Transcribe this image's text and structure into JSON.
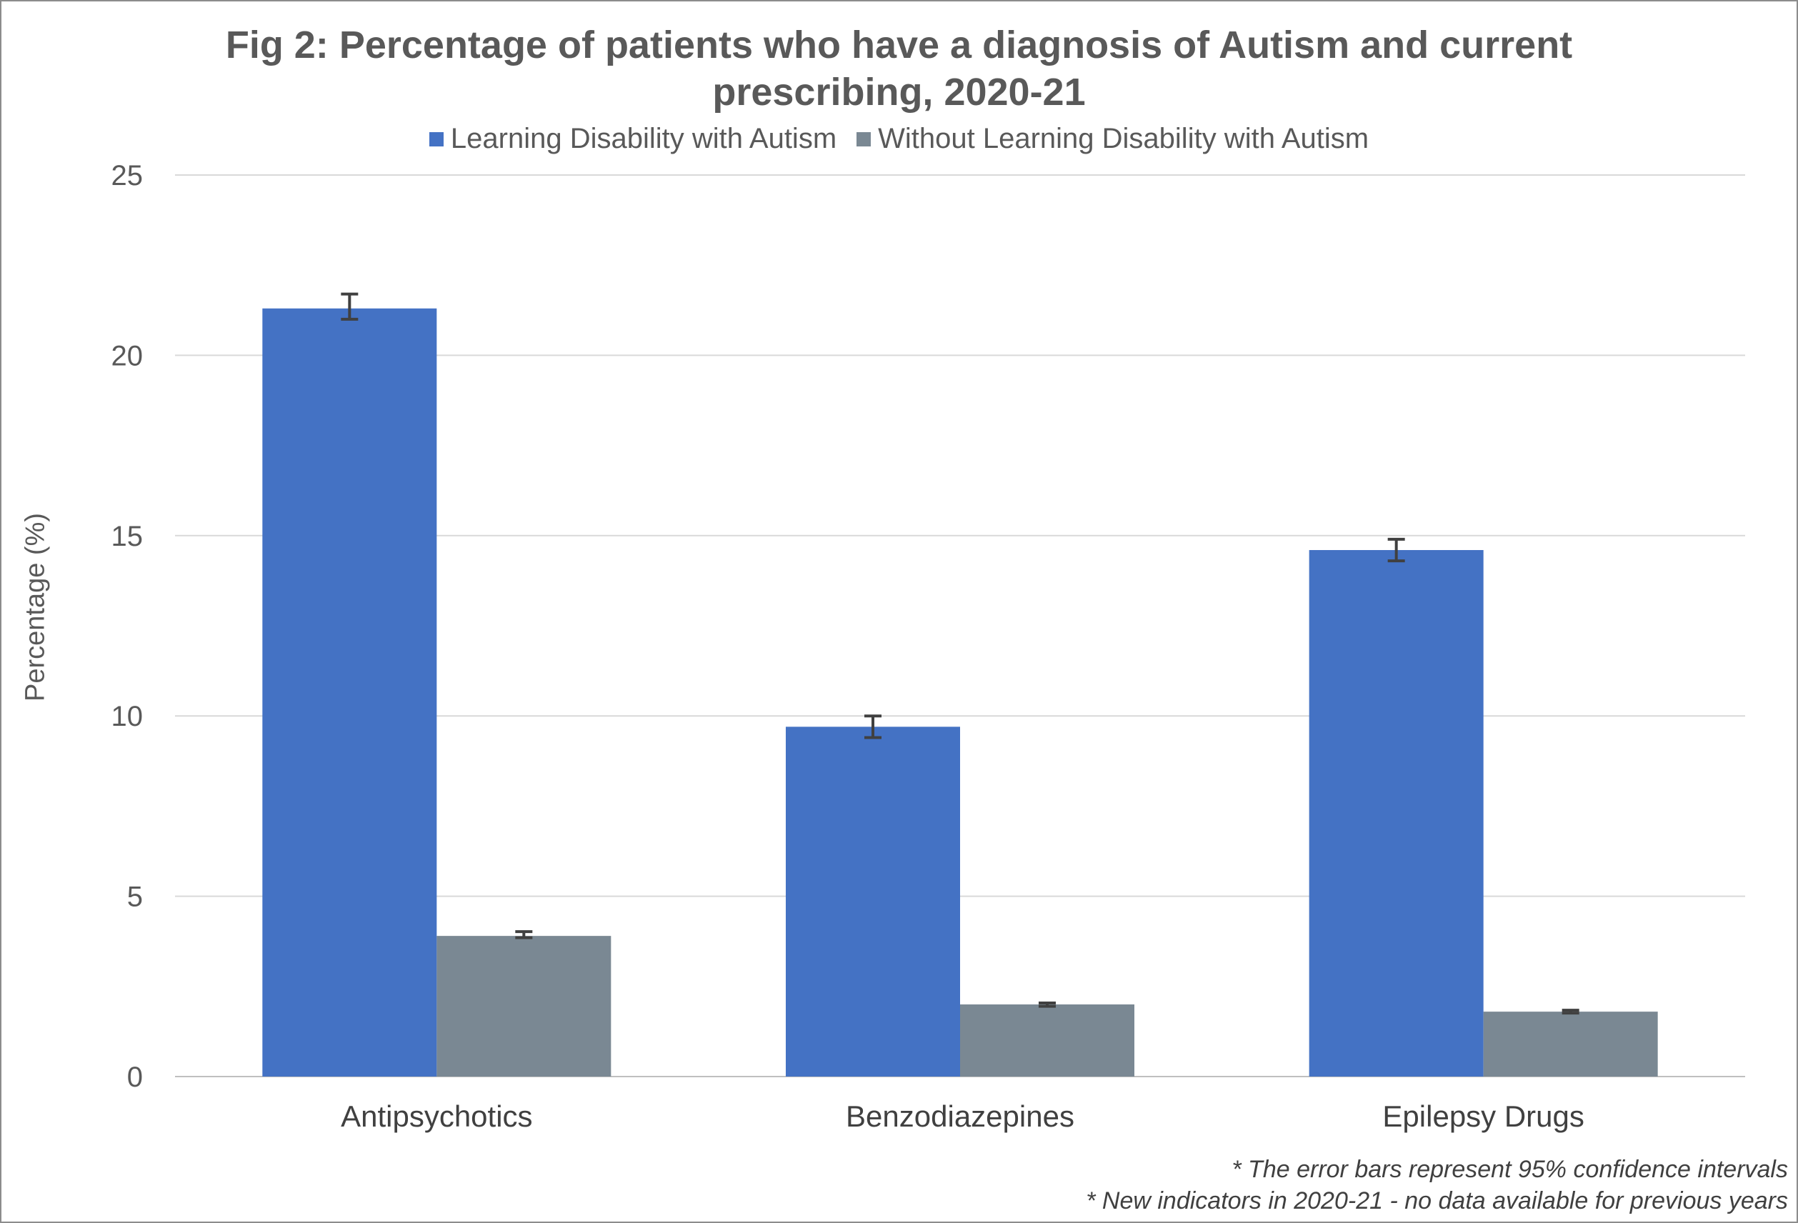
{
  "chart_data": {
    "type": "bar",
    "title_lines": [
      "Fig 2: Percentage of patients who have a diagnosis of Autism and current",
      "prescribing, 2020-21"
    ],
    "ylabel": "Percentage (%)",
    "xlabel": "",
    "ylim": [
      0,
      25
    ],
    "yticks": [
      0,
      5,
      10,
      15,
      20,
      25
    ],
    "grid": true,
    "legend_position": "top",
    "categories": [
      "Antipsychotics",
      "Benzodiazepines",
      "Epilepsy Drugs"
    ],
    "series": [
      {
        "name": "Learning Disability with Autism",
        "color": "#4472c4",
        "values": [
          21.3,
          9.7,
          14.6
        ],
        "ci_low": [
          21.0,
          9.4,
          14.3
        ],
        "ci_high": [
          21.7,
          10.0,
          14.9
        ]
      },
      {
        "name": "Without Learning Disability with Autism",
        "color": "#7a8893",
        "values": [
          3.9,
          2.0,
          1.8
        ],
        "ci_low": [
          3.85,
          1.95,
          1.76
        ],
        "ci_high": [
          4.02,
          2.04,
          1.84
        ]
      }
    ],
    "error_bar_color": "#404040",
    "footnotes": [
      "* The error bars represent 95% confidence intervals",
      "* New indicators in 2020-21 - no data available for previous years"
    ]
  }
}
